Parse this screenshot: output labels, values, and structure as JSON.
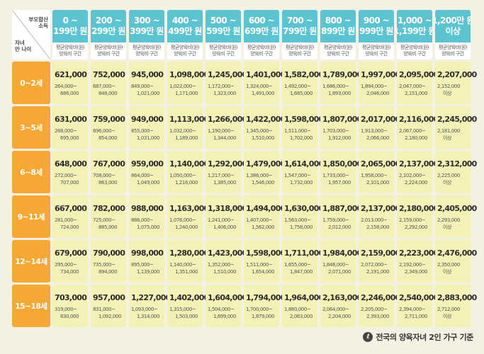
{
  "header": {
    "corner_top": [
      "부모합산",
      "소득"
    ],
    "corner_bottom": [
      "자녀",
      "만 나이"
    ],
    "sub_labels": [
      "평균양육비(원)",
      "양육비 구간"
    ]
  },
  "columns": [
    [
      "0 ~",
      "199만 원"
    ],
    [
      "200 ~",
      "299만 원"
    ],
    [
      "300 ~",
      "399만 원"
    ],
    [
      "400 ~",
      "499만 원"
    ],
    [
      "500 ~",
      "599만 원"
    ],
    [
      "600 ~",
      "699만 원"
    ],
    [
      "700 ~",
      "799만 원"
    ],
    [
      "800 ~",
      "899만 원"
    ],
    [
      "900 ~",
      "999만 원"
    ],
    [
      "1,000 ~",
      "1,199만 원"
    ],
    [
      "1,200만 원",
      "이상"
    ]
  ],
  "rows": [
    {
      "label": "0~2세",
      "cells": [
        [
          "621,000",
          "264,000~",
          "686,000"
        ],
        [
          "752,000",
          "687,000~",
          "848,000"
        ],
        [
          "945,000",
          "849,000~",
          "1,021,000"
        ],
        [
          "1,098,000",
          "1,022,000~",
          "1,171,000"
        ],
        [
          "1,245,000",
          "1,172,000~",
          "1,323,000"
        ],
        [
          "1,401,000",
          "1,324,000~",
          "1,491,000"
        ],
        [
          "1,582,000",
          "1,492,000~",
          "1,685,000"
        ],
        [
          "1,789,000",
          "1,686,000~",
          "1,893,000"
        ],
        [
          "1,997,000",
          "1,894,000~",
          "2,046,000"
        ],
        [
          "2,095,000",
          "2,047,000~",
          "2,151,000"
        ],
        [
          "2,207,000",
          "2,152,000",
          "이상"
        ]
      ]
    },
    {
      "label": "3~5세",
      "cells": [
        [
          "631,000",
          "268,000~",
          "695,000"
        ],
        [
          "759,000",
          "696,000~",
          "854,000"
        ],
        [
          "949,000",
          "855,000~",
          "1,031,000"
        ],
        [
          "1,113,000",
          "1,032,000~",
          "1,189,000"
        ],
        [
          "1,266,000",
          "1,190,000~",
          "1,344,000"
        ],
        [
          "1,422,000",
          "1,345,000~",
          "1,510,000"
        ],
        [
          "1,598,000",
          "1,511,000~",
          "1,702,000"
        ],
        [
          "1,807,000",
          "1,703,000~",
          "1,912,000"
        ],
        [
          "2,017,000",
          "1,913,000~",
          "2,066,000"
        ],
        [
          "2,116,000",
          "2,067,000~",
          "2,180,000"
        ],
        [
          "2,245,000",
          "2,181,000",
          "이상"
        ]
      ]
    },
    {
      "label": "6~8세",
      "cells": [
        [
          "648,000",
          "272,000~",
          "707,000"
        ],
        [
          "767,000",
          "708,000~",
          "863,000"
        ],
        [
          "959,000",
          "864,000~",
          "1,049,000"
        ],
        [
          "1,140,000",
          "1,050,000~",
          "1,216,000"
        ],
        [
          "1,292,000",
          "1,217,000~",
          "1,385,000"
        ],
        [
          "1,479,000",
          "1,386,000~",
          "1,546,000"
        ],
        [
          "1,614,000",
          "1,547,000~",
          "1,732,000"
        ],
        [
          "1,850,000",
          "1,733,000~",
          "1,957,000"
        ],
        [
          "2,065,000",
          "1,958,000~",
          "2,101,000"
        ],
        [
          "2,137,000",
          "2,102,000~",
          "2,224,000"
        ],
        [
          "2,312,000",
          "2,225,000",
          "이상"
        ]
      ]
    },
    {
      "label": "9~11세",
      "cells": [
        [
          "667,000",
          "281,000~",
          "724,000"
        ],
        [
          "782,000",
          "725,000~",
          "885,000"
        ],
        [
          "988,000",
          "886,000~",
          "1,075,000"
        ],
        [
          "1,163,000",
          "1,076,000~",
          "1,240,000"
        ],
        [
          "1,318,000",
          "1,241,000~",
          "1,406,000"
        ],
        [
          "1,494,000",
          "1,407,000~",
          "1,562,000"
        ],
        [
          "1,630,000",
          "1,563,000~",
          "1,758,000"
        ],
        [
          "1,887,000",
          "1,759,000~",
          "2,012,000"
        ],
        [
          "2,137,000",
          "2,013,000~",
          "2,158,000"
        ],
        [
          "2,180,000",
          "2,159,000~",
          "2,292,000"
        ],
        [
          "2,405,000",
          "2,293,000",
          "이상"
        ]
      ]
    },
    {
      "label": "12~14세",
      "cells": [
        [
          "679,000",
          "295,000~",
          "734,000"
        ],
        [
          "790,000",
          "735,000~",
          "894,000"
        ],
        [
          "998,000",
          "895,000~",
          "1,139,000"
        ],
        [
          "1,280,000",
          "1,140,000~",
          "1,351,000"
        ],
        [
          "1,423,000",
          "1,352,000~",
          "1,510,000"
        ],
        [
          "1,598,000",
          "1,511,000~",
          "1,654,000"
        ],
        [
          "1,711,000",
          "1,655,000~",
          "1,847,000"
        ],
        [
          "1,984,000",
          "1,848,000~",
          "2,071,000"
        ],
        [
          "2,159,000",
          "2,072,000~",
          "2,191,000"
        ],
        [
          "2,223,000",
          "2,192,000~",
          "2,349,000"
        ],
        [
          "2,476,000",
          "2,350,000",
          "이상"
        ]
      ]
    },
    {
      "label": "15~18세",
      "cells": [
        [
          "703,000",
          "319,000~",
          "830,000"
        ],
        [
          "957,000",
          "831,000~",
          "1,092,000"
        ],
        [
          "1,227,000",
          "1,093,000~",
          "1,314,000"
        ],
        [
          "1,402,000",
          "1,315,000~",
          "1,503,000"
        ],
        [
          "1,604,000",
          "1,504,000~",
          "1,699,000"
        ],
        [
          "1,794,000",
          "1,700,000~",
          "1,879,000"
        ],
        [
          "1,964,000",
          "1,880,000~",
          "2,063,000"
        ],
        [
          "2,163,000",
          "2,064,000~",
          "2,204,000"
        ],
        [
          "2,246,000",
          "2,205,000~",
          "2,393,000"
        ],
        [
          "2,540,000",
          "2,394,000~",
          "2,711,000"
        ],
        [
          "2,883,000",
          "2,712,000",
          "이상"
        ]
      ]
    }
  ],
  "footer": {
    "icon_glyph": "ℓ",
    "text": "전국의 양육자녀 2인 가구 기준"
  },
  "colors": {
    "header_bg": "#5cc3d1",
    "row_label_bg": "#f5a834",
    "cell_bg": "#f4f1b6",
    "page_bg": "#f4f1e2"
  }
}
